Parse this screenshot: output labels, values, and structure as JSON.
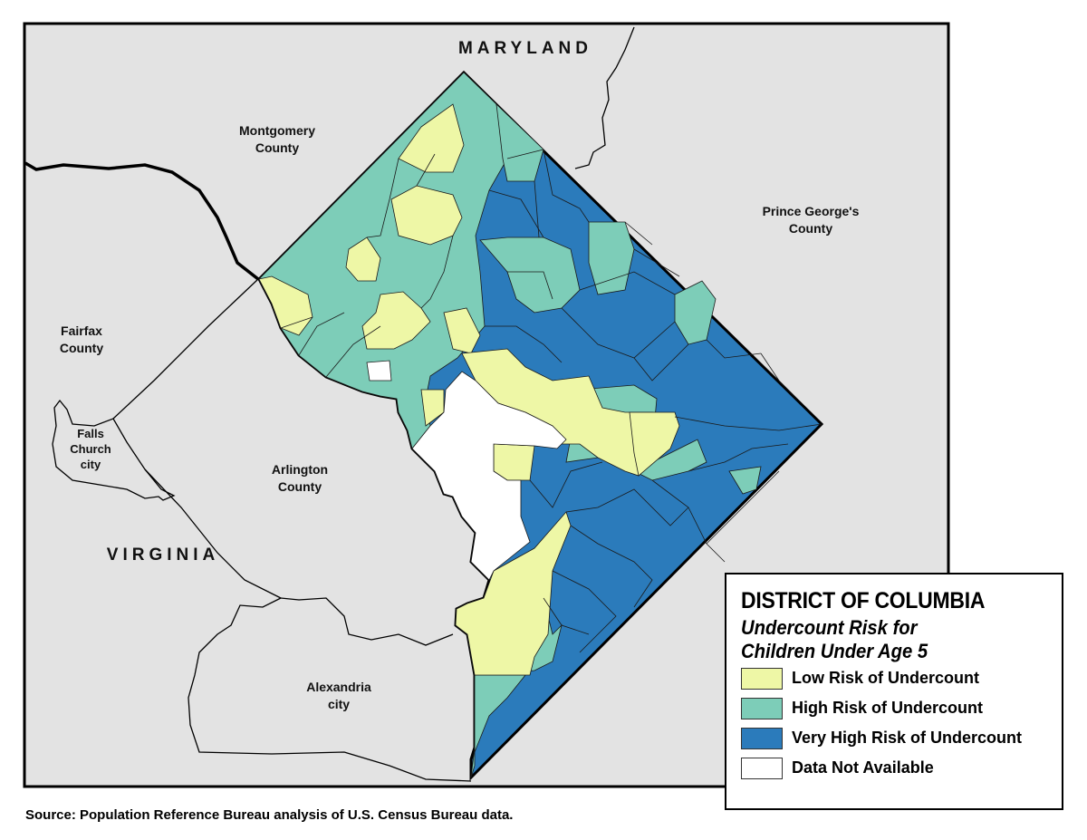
{
  "colors": {
    "low": "#eef7a6",
    "high": "#7dcdb8",
    "very_high": "#2b7bbb",
    "na": "#ffffff",
    "land": "#e3e3e3",
    "border": "#000000"
  },
  "map": {
    "states": {
      "maryland": "MARYLAND",
      "virginia": "VIRGINIA"
    },
    "counties": {
      "montgomery": [
        "Montgomery",
        "County"
      ],
      "prince_georges": [
        "Prince George's",
        "County"
      ],
      "fairfax": [
        "Fairfax",
        "County"
      ],
      "arlington": [
        "Arlington",
        "County"
      ],
      "falls_church": [
        "Falls",
        "Church",
        "city"
      ],
      "alexandria": [
        "Alexandria",
        "city"
      ]
    }
  },
  "legend": {
    "title": "DISTRICT OF COLUMBIA",
    "subtitle": [
      "Undercount Risk for",
      "Children Under Age 5"
    ],
    "items": [
      {
        "key": "low",
        "label": "Low Risk of Undercount"
      },
      {
        "key": "high",
        "label": "High Risk of Undercount"
      },
      {
        "key": "very_high",
        "label": "Very High Risk of Undercount"
      },
      {
        "key": "na",
        "label": "Data Not Available"
      }
    ]
  },
  "source": "Source: Population Reference Bureau analysis of U.S. Census Bureau data."
}
